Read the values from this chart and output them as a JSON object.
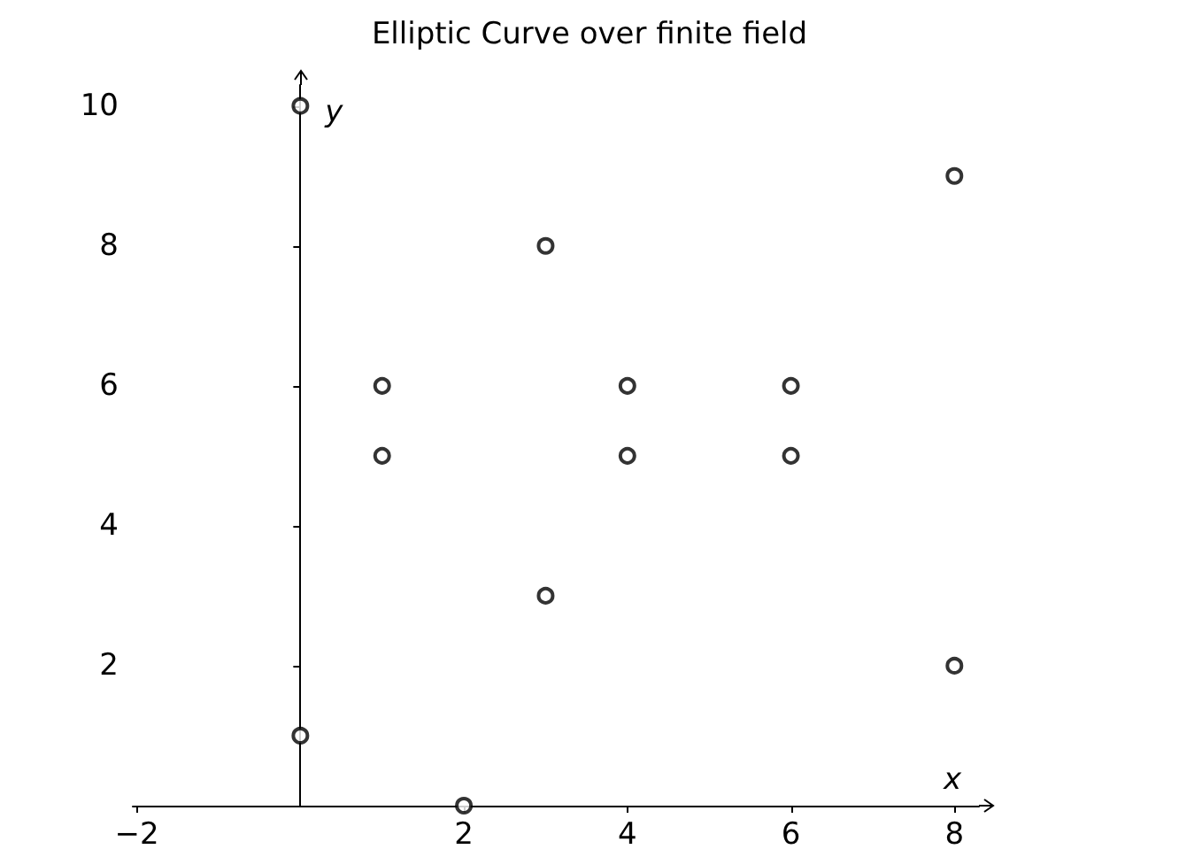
{
  "chart_data": {
    "type": "scatter",
    "title": "Elliptic Curve over finite field",
    "xlabel": "x",
    "ylabel": "y",
    "x": [
      0,
      0,
      1,
      1,
      2,
      3,
      3,
      4,
      4,
      6,
      6,
      8,
      8
    ],
    "series": [
      {
        "color": "#000000",
        "values": [
          10,
          1,
          6,
          5,
          0,
          8,
          3,
          6,
          5,
          6,
          5,
          9,
          2
        ]
      }
    ],
    "xlim": [
      -2.05,
      8.3
    ],
    "ylim": [
      0,
      10.3
    ],
    "xticks": [
      -2,
      2,
      4,
      6,
      8
    ],
    "yticks": [
      2,
      4,
      6,
      8,
      10
    ],
    "marker": "circle",
    "grid": false
  }
}
